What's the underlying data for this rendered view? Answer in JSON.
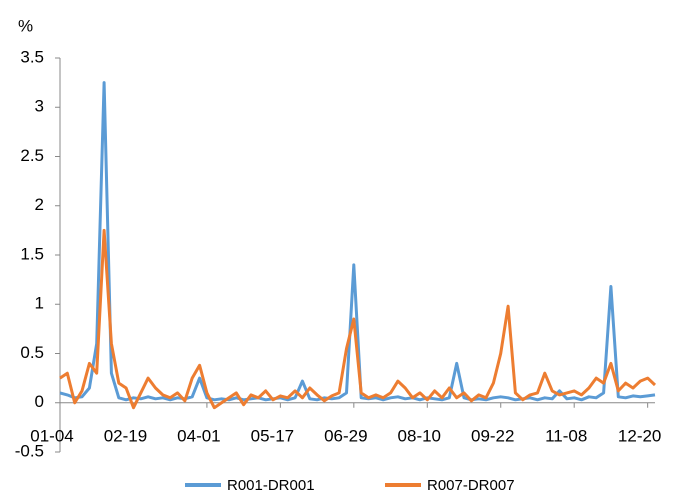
{
  "chart_data": {
    "type": "line",
    "y_label": "%",
    "categories": [
      "01-04",
      null,
      null,
      null,
      null,
      null,
      null,
      null,
      null,
      null,
      "02-19",
      null,
      null,
      null,
      null,
      null,
      null,
      null,
      null,
      null,
      "04-01",
      null,
      null,
      null,
      null,
      null,
      null,
      null,
      null,
      null,
      "05-17",
      null,
      null,
      null,
      null,
      null,
      null,
      null,
      null,
      null,
      "06-29",
      null,
      null,
      null,
      null,
      null,
      null,
      null,
      null,
      null,
      "08-10",
      null,
      null,
      null,
      null,
      null,
      null,
      null,
      null,
      null,
      "09-22",
      null,
      null,
      null,
      null,
      null,
      null,
      null,
      null,
      null,
      "11-08",
      null,
      null,
      null,
      null,
      null,
      null,
      null,
      null,
      null,
      "12-20",
      null
    ],
    "series": [
      {
        "name": "R001-DR001",
        "color": "#5b9bd5",
        "values": [
          0.1,
          0.08,
          0.05,
          0.06,
          0.15,
          0.6,
          3.25,
          0.3,
          0.05,
          0.03,
          0.05,
          0.04,
          0.06,
          0.04,
          0.05,
          0.03,
          0.05,
          0.04,
          0.06,
          0.25,
          0.05,
          0.03,
          0.04,
          0.03,
          0.05,
          0.03,
          0.04,
          0.05,
          0.03,
          0.04,
          0.05,
          0.03,
          0.05,
          0.22,
          0.04,
          0.03,
          0.05,
          0.04,
          0.05,
          0.1,
          1.4,
          0.05,
          0.04,
          0.05,
          0.03,
          0.05,
          0.06,
          0.04,
          0.05,
          0.03,
          0.05,
          0.04,
          0.03,
          0.05,
          0.4,
          0.05,
          0.03,
          0.04,
          0.03,
          0.05,
          0.06,
          0.05,
          0.03,
          0.04,
          0.05,
          0.03,
          0.05,
          0.04,
          0.12,
          0.04,
          0.05,
          0.03,
          0.06,
          0.05,
          0.1,
          1.18,
          0.06,
          0.05,
          0.07,
          0.06,
          0.07,
          0.08
        ]
      },
      {
        "name": "R007-DR007",
        "color": "#ed7d31",
        "values": [
          0.25,
          0.3,
          0.0,
          0.12,
          0.4,
          0.3,
          1.75,
          0.6,
          0.2,
          0.15,
          -0.05,
          0.1,
          0.25,
          0.15,
          0.08,
          0.05,
          0.1,
          0.02,
          0.25,
          0.38,
          0.1,
          -0.05,
          0.0,
          0.05,
          0.1,
          -0.02,
          0.08,
          0.05,
          0.12,
          0.03,
          0.07,
          0.05,
          0.12,
          0.05,
          0.15,
          0.08,
          0.02,
          0.07,
          0.1,
          0.55,
          0.85,
          0.1,
          0.05,
          0.08,
          0.05,
          0.1,
          0.22,
          0.15,
          0.05,
          0.1,
          0.03,
          0.12,
          0.05,
          0.15,
          0.05,
          0.1,
          0.02,
          0.08,
          0.05,
          0.2,
          0.5,
          0.98,
          0.1,
          0.03,
          0.08,
          0.1,
          0.3,
          0.12,
          0.08,
          0.1,
          0.12,
          0.08,
          0.15,
          0.25,
          0.2,
          0.4,
          0.12,
          0.2,
          0.15,
          0.22,
          0.25,
          0.18
        ]
      }
    ],
    "ylim": [
      -0.5,
      3.5
    ],
    "yticks": [
      -0.5,
      0,
      0.5,
      1,
      1.5,
      2,
      2.5,
      3,
      3.5
    ],
    "grid": false,
    "legend": "bottom"
  }
}
